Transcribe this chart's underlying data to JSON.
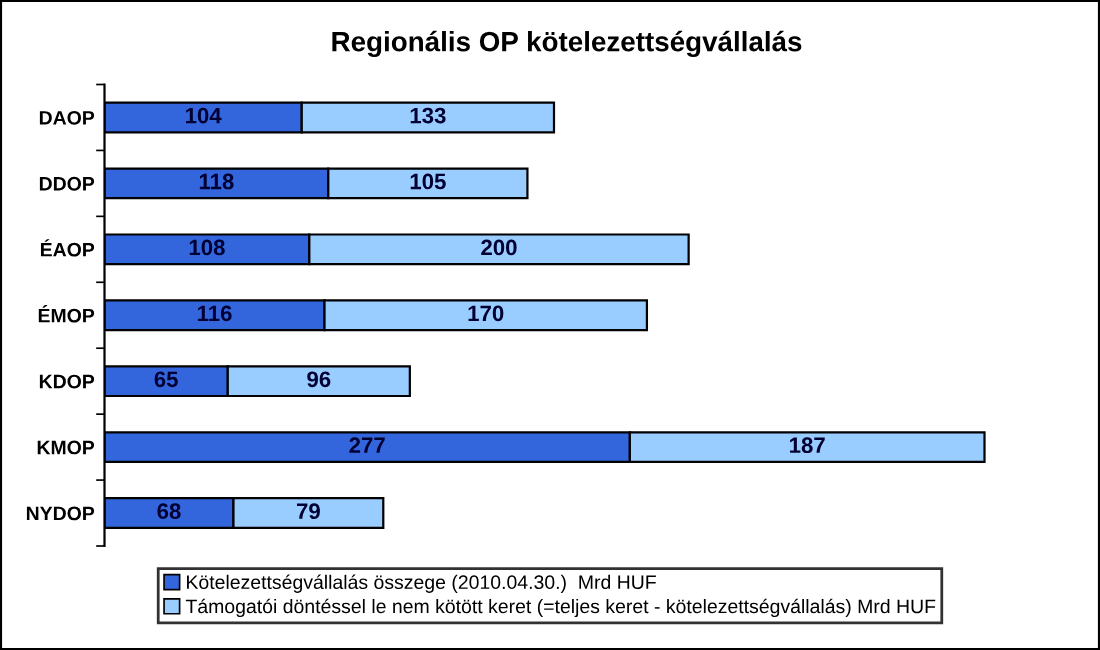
{
  "chart_data": {
    "type": "bar",
    "orientation": "horizontal",
    "stacked": true,
    "title": "Regionális OP kötelezettségvállalás",
    "categories": [
      "DAOP",
      "DDOP",
      "ÉAOP",
      "ÉMOP",
      "KDOP",
      "KMOP",
      "NYDOP"
    ],
    "series": [
      {
        "name": "Kötelezettségvállalás összege (2010.04.30.)  Mrd HUF",
        "color": "#3366dd",
        "values": [
          104,
          118,
          108,
          116,
          65,
          277,
          68
        ]
      },
      {
        "name": "Támogatói döntéssel le nem kötött keret (=teljes keret - kötelezettségvállalás) Mrd HUF",
        "color": "#99ccff",
        "values": [
          133,
          105,
          200,
          170,
          96,
          187,
          79
        ]
      }
    ],
    "data_labels": true,
    "legend": "bottom",
    "grid": false,
    "tick_labels": "y"
  }
}
